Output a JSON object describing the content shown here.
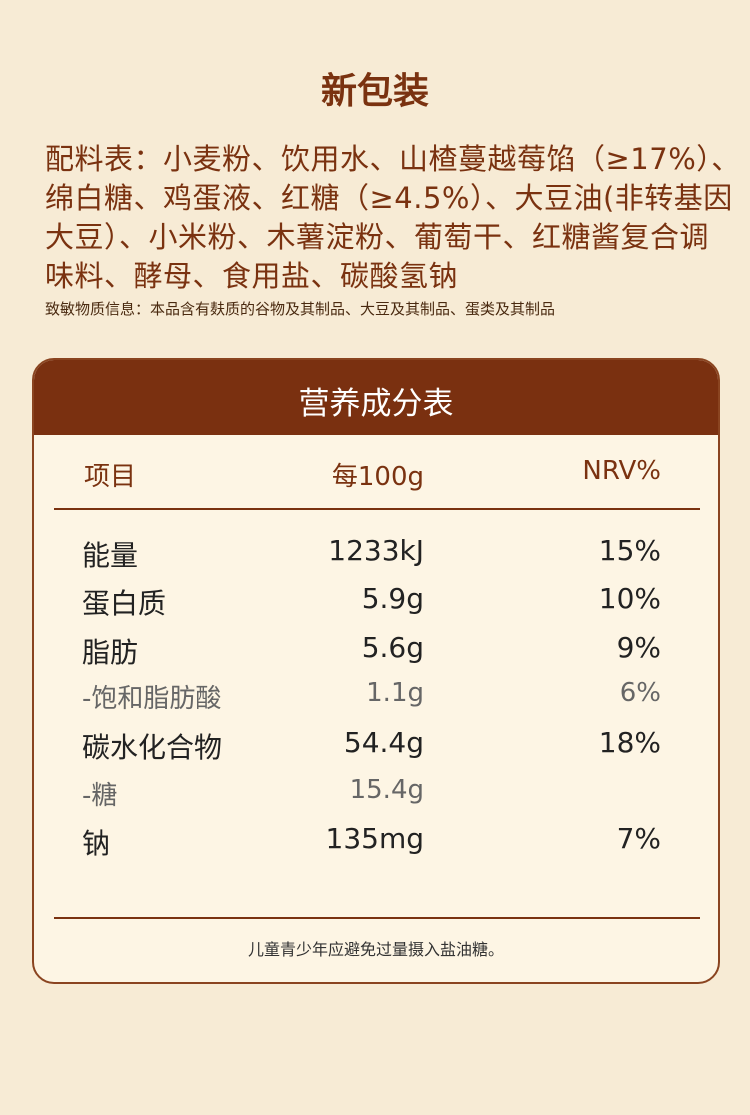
{
  "title": "新包装",
  "ingredients": [
    "配料表：小麦粉、饮用水、山楂蔓越莓馅（≥17%）、",
    "绵白糖、鸡蛋液、红糖（≥4.5%）、大豆油(非转基因",
    "大豆）、小米粉、木薯淀粉、葡萄干、红糖酱复合调",
    "味料、酵母、食用盐、碳酸氢钠"
  ],
  "allergen": "致敏物质信息：本品含有麸质的谷物及其制品、大豆及其制品、蛋类及其制品",
  "table": {
    "title": "营养成分表",
    "header": [
      "项目",
      "每100g",
      "NRV%"
    ],
    "rows": [
      [
        "能量",
        "1233kJ",
        "15%"
      ],
      [
        "蛋白质",
        "5.9g",
        "10%"
      ],
      [
        "脂肪",
        "5.6g",
        "9%"
      ],
      [
        "-饱和脂肪酸",
        "1.1g",
        "6%"
      ],
      [
        "碳水化合物",
        "54.4g",
        "18%"
      ],
      [
        "-糖",
        "15.4g"
      ],
      [
        "钠",
        "135mg",
        "7%"
      ]
    ],
    "note": "儿童青少年应避免过量摄入盐油糖。"
  }
}
